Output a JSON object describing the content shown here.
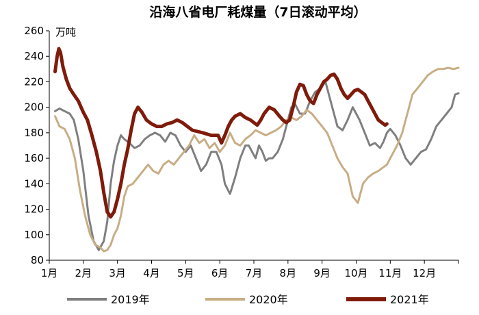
{
  "chart_data": {
    "type": "line",
    "title": "沿海八省电厂耗煤量（7日滚动平均）",
    "y_unit": "万吨",
    "ylim": [
      80,
      260
    ],
    "y_ticks": [
      80,
      100,
      120,
      140,
      160,
      180,
      200,
      220,
      240,
      260
    ],
    "xlim": [
      0,
      12
    ],
    "month_labels": [
      "1月",
      "2月",
      "3月",
      "4月",
      "5月",
      "6月",
      "7月",
      "8月",
      "9月",
      "10月",
      "11月",
      "12月"
    ],
    "grid": false,
    "legend_position": "bottom",
    "series": [
      {
        "name": "2019年",
        "color": "#7f7f7f",
        "x": [
          0.17,
          0.3,
          0.45,
          0.6,
          0.72,
          0.85,
          1.0,
          1.15,
          1.3,
          1.45,
          1.6,
          1.7,
          1.8,
          1.9,
          2.0,
          2.1,
          2.2,
          2.35,
          2.5,
          2.65,
          2.8,
          2.95,
          3.1,
          3.25,
          3.4,
          3.55,
          3.7,
          3.85,
          4.0,
          4.15,
          4.3,
          4.45,
          4.6,
          4.75,
          4.9,
          5.05,
          5.15,
          5.3,
          5.45,
          5.6,
          5.75,
          5.85,
          5.95,
          6.05,
          6.15,
          6.25,
          6.35,
          6.45,
          6.55,
          6.7,
          6.85,
          7.0,
          7.1,
          7.2,
          7.35,
          7.5,
          7.65,
          7.8,
          7.95,
          8.1,
          8.2,
          8.3,
          8.45,
          8.6,
          8.75,
          8.9,
          9.0,
          9.1,
          9.25,
          9.4,
          9.55,
          9.7,
          9.8,
          9.9,
          10.0,
          10.15,
          10.3,
          10.45,
          10.6,
          10.75,
          10.9,
          11.05,
          11.2,
          11.35,
          11.5,
          11.65,
          11.8,
          11.9,
          12.0
        ],
        "y": [
          197,
          199,
          197,
          195,
          190,
          175,
          150,
          115,
          95,
          88,
          95,
          110,
          140,
          158,
          170,
          178,
          175,
          172,
          168,
          170,
          175,
          178,
          180,
          178,
          173,
          180,
          178,
          170,
          165,
          170,
          160,
          150,
          155,
          165,
          165,
          155,
          140,
          132,
          145,
          160,
          170,
          170,
          165,
          160,
          170,
          165,
          158,
          160,
          160,
          165,
          175,
          190,
          200,
          203,
          195,
          195,
          205,
          212,
          215,
          220,
          210,
          200,
          185,
          182,
          190,
          200,
          195,
          190,
          180,
          170,
          172,
          168,
          173,
          180,
          183,
          178,
          170,
          160,
          155,
          160,
          165,
          167,
          175,
          185,
          190,
          195,
          200,
          210,
          211
        ]
      },
      {
        "name": "2020年",
        "color": "#c8ad85",
        "x": [
          0.17,
          0.3,
          0.45,
          0.6,
          0.75,
          0.9,
          1.05,
          1.2,
          1.35,
          1.5,
          1.6,
          1.7,
          1.8,
          1.9,
          2.0,
          2.1,
          2.2,
          2.3,
          2.45,
          2.6,
          2.75,
          2.9,
          3.05,
          3.2,
          3.35,
          3.5,
          3.65,
          3.8,
          3.95,
          4.1,
          4.25,
          4.4,
          4.55,
          4.7,
          4.85,
          5.0,
          5.15,
          5.3,
          5.45,
          5.6,
          5.75,
          5.9,
          6.05,
          6.2,
          6.35,
          6.5,
          6.65,
          6.8,
          6.95,
          7.1,
          7.25,
          7.4,
          7.55,
          7.7,
          7.85,
          8.0,
          8.15,
          8.3,
          8.45,
          8.6,
          8.75,
          8.9,
          9.05,
          9.2,
          9.35,
          9.5,
          9.65,
          9.8,
          9.9,
          10.0,
          10.1,
          10.2,
          10.35,
          10.5,
          10.65,
          10.8,
          10.95,
          11.1,
          11.25,
          11.4,
          11.55,
          11.7,
          11.85,
          12.0
        ],
        "y": [
          193,
          185,
          183,
          175,
          160,
          135,
          115,
          100,
          92,
          90,
          87,
          88,
          92,
          100,
          105,
          115,
          130,
          138,
          140,
          145,
          150,
          155,
          150,
          148,
          155,
          158,
          155,
          160,
          165,
          170,
          178,
          172,
          175,
          168,
          172,
          165,
          170,
          180,
          172,
          170,
          175,
          178,
          182,
          180,
          178,
          180,
          182,
          185,
          190,
          192,
          190,
          193,
          198,
          195,
          190,
          185,
          180,
          170,
          160,
          153,
          148,
          130,
          125,
          140,
          145,
          148,
          150,
          153,
          155,
          160,
          165,
          170,
          180,
          195,
          210,
          215,
          220,
          225,
          228,
          230,
          230,
          231,
          230,
          231
        ]
      },
      {
        "name": "2021年",
        "color": "#7f1b0b",
        "x": [
          0.17,
          0.23,
          0.28,
          0.33,
          0.4,
          0.5,
          0.6,
          0.72,
          0.85,
          1.0,
          1.12,
          1.25,
          1.38,
          1.5,
          1.6,
          1.7,
          1.8,
          1.9,
          2.0,
          2.1,
          2.2,
          2.3,
          2.4,
          2.5,
          2.6,
          2.72,
          2.85,
          3.0,
          3.15,
          3.3,
          3.45,
          3.6,
          3.75,
          3.9,
          4.05,
          4.2,
          4.35,
          4.5,
          4.62,
          4.75,
          4.85,
          4.95,
          5.05,
          5.15,
          5.25,
          5.35,
          5.45,
          5.6,
          5.75,
          5.9,
          6.0,
          6.1,
          6.2,
          6.3,
          6.45,
          6.6,
          6.75,
          6.85,
          6.95,
          7.05,
          7.15,
          7.25,
          7.35,
          7.45,
          7.55,
          7.65,
          7.75,
          7.85,
          7.95,
          8.05,
          8.15,
          8.25,
          8.35,
          8.45,
          8.55,
          8.65,
          8.75,
          8.85,
          8.95,
          9.05,
          9.15,
          9.25,
          9.35,
          9.45,
          9.55,
          9.65,
          9.75,
          9.85,
          9.9
        ],
        "y": [
          228,
          240,
          246,
          243,
          232,
          222,
          215,
          210,
          205,
          196,
          190,
          178,
          165,
          150,
          133,
          118,
          114,
          118,
          128,
          140,
          155,
          167,
          182,
          195,
          200,
          196,
          190,
          187,
          185,
          185,
          187,
          188,
          190,
          188,
          185,
          182,
          181,
          180,
          179,
          178,
          178,
          178,
          172,
          178,
          185,
          190,
          193,
          195,
          192,
          190,
          188,
          186,
          190,
          195,
          200,
          198,
          193,
          190,
          188,
          190,
          200,
          212,
          218,
          217,
          210,
          205,
          203,
          210,
          215,
          220,
          222,
          225,
          226,
          222,
          215,
          210,
          207,
          210,
          213,
          214,
          212,
          210,
          205,
          200,
          195,
          190,
          188,
          186,
          187
        ]
      }
    ]
  }
}
